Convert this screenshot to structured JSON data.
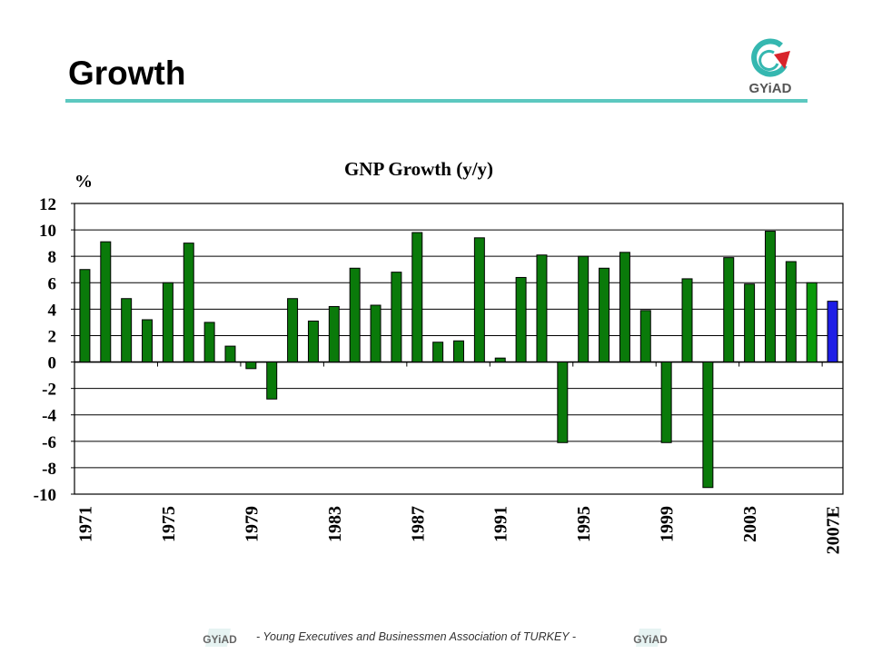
{
  "slide": {
    "title": "Growth",
    "logo_text": "GYiAD",
    "footer_text": "- Young Executives and Businessmen Association of TURKEY -"
  },
  "colors": {
    "accent_rule": "#5cc8c0",
    "bar_green": "#0a7a0a",
    "bar_bright_green": "#0b9a0b",
    "bar_blue": "#1e1ee6",
    "logo_teal": "#35b7b0",
    "logo_red": "#d8232a"
  },
  "chart_data": {
    "type": "bar",
    "title": "GNP Growth (y/y)",
    "ylabel": "%",
    "ylim": [
      -10,
      12
    ],
    "yticks": [
      12,
      10,
      8,
      6,
      4,
      2,
      0,
      -2,
      -4,
      -6,
      -8,
      -10
    ],
    "grid": true,
    "categories": [
      "1971",
      "1972",
      "1973",
      "1974",
      "1975",
      "1976",
      "1977",
      "1978",
      "1979",
      "1980",
      "1981",
      "1982",
      "1983",
      "1984",
      "1985",
      "1986",
      "1987",
      "1988",
      "1989",
      "1990",
      "1991",
      "1992",
      "1993",
      "1994",
      "1995",
      "1996",
      "1997",
      "1998",
      "1999",
      "2000",
      "2001",
      "2002",
      "2003",
      "2004",
      "2005",
      "2006",
      "2007E"
    ],
    "xtick_labels": [
      "1971",
      "1975",
      "1979",
      "1983",
      "1987",
      "1991",
      "1995",
      "1999",
      "2003",
      "2007E"
    ],
    "values": [
      7.0,
      9.1,
      4.8,
      3.2,
      6.0,
      9.0,
      3.0,
      1.2,
      -0.5,
      -2.8,
      4.8,
      3.1,
      4.2,
      7.1,
      4.3,
      6.8,
      9.8,
      1.5,
      1.6,
      9.4,
      0.3,
      6.4,
      8.1,
      -6.1,
      8.0,
      7.1,
      8.3,
      3.9,
      -6.1,
      6.3,
      -9.5,
      7.9,
      5.9,
      9.9,
      7.6,
      6.0,
      4.6
    ],
    "bar_color_keys": [
      "bar_green",
      "bar_green",
      "bar_green",
      "bar_green",
      "bar_green",
      "bar_green",
      "bar_green",
      "bar_green",
      "bar_green",
      "bar_green",
      "bar_green",
      "bar_green",
      "bar_green",
      "bar_green",
      "bar_green",
      "bar_green",
      "bar_green",
      "bar_green",
      "bar_green",
      "bar_green",
      "bar_green",
      "bar_green",
      "bar_green",
      "bar_green",
      "bar_green",
      "bar_green",
      "bar_green",
      "bar_green",
      "bar_green",
      "bar_green",
      "bar_green",
      "bar_green",
      "bar_green",
      "bar_green",
      "bar_green",
      "bar_bright_green",
      "bar_blue"
    ]
  }
}
